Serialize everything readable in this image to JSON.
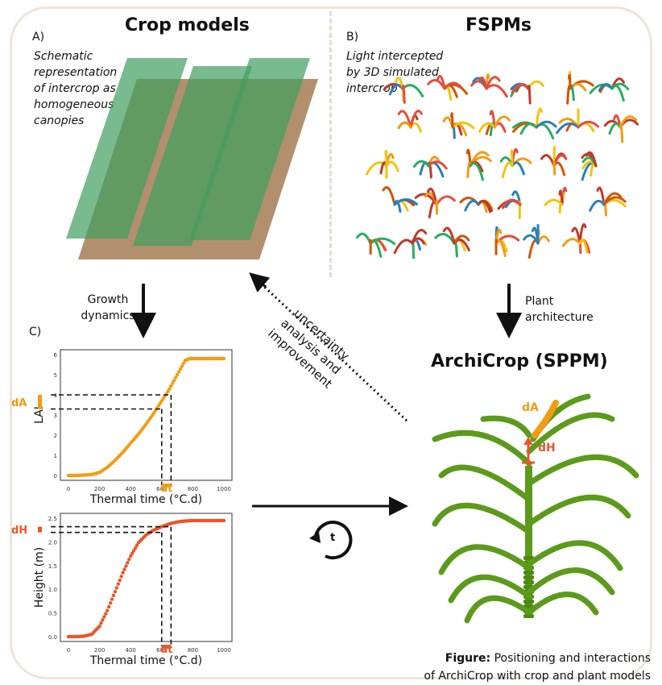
{
  "titles": {
    "crop_models": "Crop models",
    "fspms": "FSPMs",
    "archicrop": "ArchiCrop (SPPM)"
  },
  "panel_a": {
    "letter": "A)",
    "text": "Schematic representation of intercrop as homogeneous canopies"
  },
  "panel_b": {
    "letter": "B)",
    "text": "Light intercepted by 3D simulated intercrop"
  },
  "panel_c": {
    "letter": "C)"
  },
  "arrows": {
    "growth": "Growth dynamics",
    "architecture": "Plant architecture",
    "uncertainty": "uncertainty analysis and improvement",
    "time": "t"
  },
  "plant_labels": {
    "dA": "dA",
    "dH": "dH"
  },
  "caption": {
    "bold": "Figure:",
    "line1": "Positioning and interactions",
    "line2": "of ArchiCrop with crop and plant models"
  },
  "colors": {
    "lai": "#f39c12",
    "height": "#e8572a",
    "canopy_green": "#3e9e5e",
    "soil": "#a57c54",
    "plant_green": "#5c9a1c"
  },
  "chart_data": [
    {
      "type": "scatter",
      "ylabel": "LAI",
      "xlabel": "Thermal time (°C.d)",
      "xlim": [
        0,
        1000
      ],
      "ylim": [
        0,
        6
      ],
      "xticks": [
        0,
        200,
        400,
        600,
        800,
        1000
      ],
      "yticks": [
        0,
        1,
        2,
        3,
        4,
        5,
        6
      ],
      "x": [
        0,
        50,
        100,
        150,
        200,
        250,
        300,
        350,
        400,
        450,
        500,
        550,
        600,
        650,
        700,
        750,
        780,
        800,
        850,
        900,
        950,
        1000
      ],
      "y": [
        0,
        0,
        0.02,
        0.05,
        0.15,
        0.4,
        0.75,
        1.15,
        1.6,
        2.05,
        2.55,
        3.1,
        3.7,
        4.3,
        5.0,
        5.7,
        5.8,
        5.8,
        5.8,
        5.8,
        5.8,
        5.8
      ],
      "markers": {
        "dA": "dA",
        "dt": "dt",
        "t1": 600,
        "t2": 660,
        "y1": 3.3,
        "y2": 4.0
      }
    },
    {
      "type": "scatter",
      "ylabel": "Height (m)",
      "xlabel": "Thermal time (°C.d)",
      "xlim": [
        0,
        1000
      ],
      "ylim": [
        0,
        2.5
      ],
      "xticks": [
        0,
        200,
        400,
        600,
        800,
        1000
      ],
      "yticks": [
        0.0,
        0.5,
        1.0,
        1.5,
        2.0,
        2.5
      ],
      "x": [
        0,
        50,
        100,
        150,
        200,
        250,
        300,
        350,
        400,
        450,
        500,
        550,
        600,
        650,
        700,
        750,
        800,
        850,
        900,
        950,
        1000
      ],
      "y": [
        0,
        0,
        0.01,
        0.05,
        0.22,
        0.55,
        0.95,
        1.35,
        1.7,
        1.98,
        2.15,
        2.25,
        2.32,
        2.38,
        2.42,
        2.44,
        2.45,
        2.45,
        2.45,
        2.45,
        2.45
      ],
      "markers": {
        "dH": "dH",
        "dt": "dt",
        "t1": 600,
        "t2": 660,
        "y1": 2.2,
        "y2": 2.32
      }
    }
  ]
}
